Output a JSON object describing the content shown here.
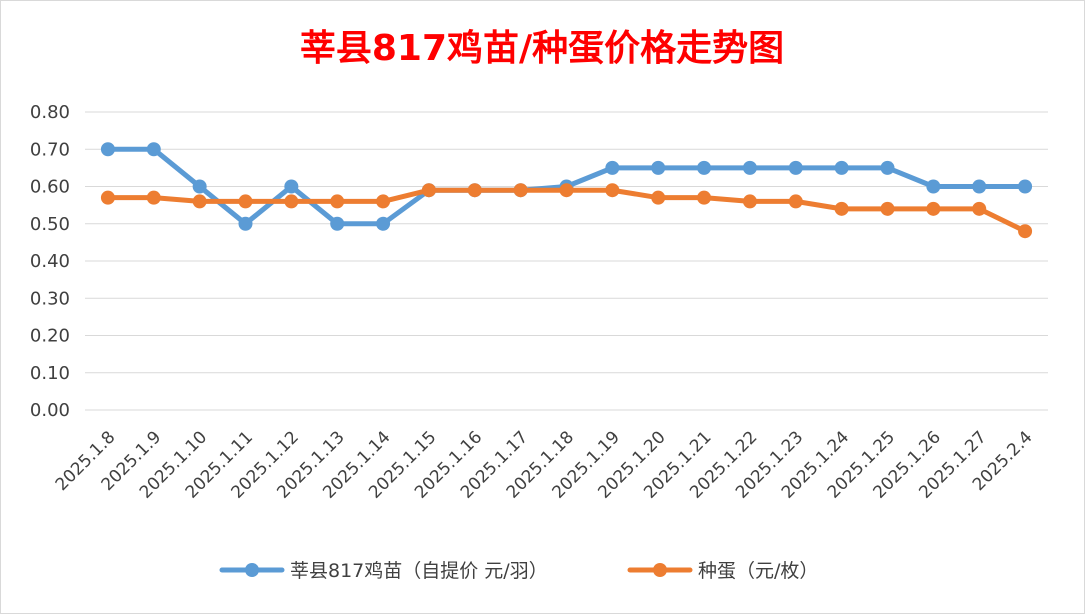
{
  "chart_data": {
    "type": "line",
    "title": "莘县817鸡苗/种蛋价格走势图",
    "categories": [
      "2025.1.8",
      "2025.1.9",
      "2025.1.10",
      "2025.1.11",
      "2025.1.12",
      "2025.1.13",
      "2025.1.14",
      "2025.1.15",
      "2025.1.16",
      "2025.1.17",
      "2025.1.18",
      "2025.1.19",
      "2025.1.20",
      "2025.1.21",
      "2025.1.22",
      "2025.1.23",
      "2025.1.24",
      "2025.1.25",
      "2025.1.26",
      "2025.1.27",
      "2025.2.4"
    ],
    "series": [
      {
        "name": "莘县817鸡苗（自提价 元/羽）",
        "color": "#5b9bd5",
        "values": [
          0.7,
          0.7,
          0.6,
          0.5,
          0.6,
          0.5,
          0.5,
          0.59,
          0.59,
          0.59,
          0.6,
          0.65,
          0.65,
          0.65,
          0.65,
          0.65,
          0.65,
          0.65,
          0.6,
          0.6,
          0.6
        ]
      },
      {
        "name": "种蛋（元/枚）",
        "color": "#ed7d31",
        "values": [
          0.57,
          0.57,
          0.56,
          0.56,
          0.56,
          0.56,
          0.56,
          0.59,
          0.59,
          0.59,
          0.59,
          0.59,
          0.57,
          0.57,
          0.56,
          0.56,
          0.54,
          0.54,
          0.54,
          0.54,
          0.48
        ]
      }
    ],
    "ylim": [
      0,
      0.8
    ],
    "yticks": [
      "0.00",
      "0.10",
      "0.20",
      "0.30",
      "0.40",
      "0.50",
      "0.60",
      "0.70",
      "0.80"
    ],
    "grid": true,
    "legend_position": "bottom"
  }
}
